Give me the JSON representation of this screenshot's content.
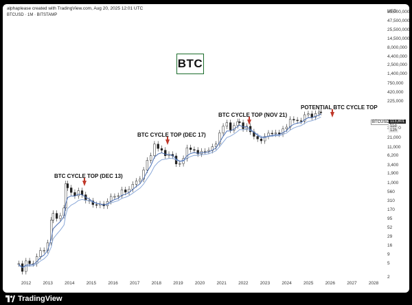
{
  "header": {
    "credit": "alphaplease created with TradingView.com, Aug 20, 2025 12:01 UTC",
    "symbol_line": "BTCUSD · 1M · BITSTAMP"
  },
  "badge": {
    "text": "BTC",
    "border_color": "#1a6b2a"
  },
  "annotations": [
    {
      "id": "dec13",
      "text": "BTC CYCLE TOP (DEC 13)"
    },
    {
      "id": "dec17",
      "text": "BTC CYCLE TOP (DEC 17)"
    },
    {
      "id": "nov21",
      "text": "BTC CYCLE TOP (NOV 21)"
    },
    {
      "id": "potential",
      "text": "POTENTIAL BTC CYCLE TOP"
    }
  ],
  "arrow_color": "#c0392b",
  "price_scale": {
    "currency": "USD",
    "labels": [
      "85,000,000",
      "47,500,000",
      "25,500,000",
      "14,500,000",
      "8,000,000",
      "4,400,000",
      "2,500,000",
      "1,400,000",
      "750,000",
      "420,000",
      "225,000",
      "39,000",
      "21,000",
      "11,000",
      "6,200",
      "3,400",
      "1,900",
      "1,000",
      "560",
      "310",
      "170",
      "95",
      "52",
      "29",
      "16",
      "9",
      "5",
      "2"
    ]
  },
  "last_price": {
    "symbol": "BTCUSD",
    "value": "113,801",
    "sub": "11d 12h"
  },
  "x_axis": {
    "years": [
      "2012",
      "2013",
      "2014",
      "2015",
      "2016",
      "2017",
      "2018",
      "2019",
      "2020",
      "2021",
      "2022",
      "2023",
      "2024",
      "2025",
      "2026",
      "2027",
      "2028"
    ]
  },
  "chart_data": {
    "type": "candlestick",
    "title": "BTCUSD · 1M · BITSTAMP",
    "y_scale": "log",
    "ylim": [
      2,
      85000000
    ],
    "x_range": [
      "2011-07",
      "2028-06"
    ],
    "ema_color": "#4a6fb5",
    "ema2_color": "#8aa8d8",
    "up_color": "#ffffff",
    "down_color": "#222222",
    "monthly": [
      [
        "2011-09",
        5
      ],
      [
        "2011-11",
        3
      ],
      [
        "2012-01",
        6
      ],
      [
        "2012-03",
        5
      ],
      [
        "2012-05",
        5
      ],
      [
        "2012-07",
        8
      ],
      [
        "2012-09",
        12
      ],
      [
        "2012-11",
        12
      ],
      [
        "2013-01",
        20
      ],
      [
        "2013-03",
        90
      ],
      [
        "2013-04",
        140
      ],
      [
        "2013-06",
        100
      ],
      [
        "2013-08",
        120
      ],
      [
        "2013-10",
        200
      ],
      [
        "2013-11",
        1000
      ],
      [
        "2013-12",
        760
      ],
      [
        "2014-02",
        560
      ],
      [
        "2014-04",
        450
      ],
      [
        "2014-06",
        630
      ],
      [
        "2014-08",
        480
      ],
      [
        "2014-10",
        330
      ],
      [
        "2014-12",
        320
      ],
      [
        "2015-02",
        250
      ],
      [
        "2015-04",
        240
      ],
      [
        "2015-06",
        260
      ],
      [
        "2015-08",
        230
      ],
      [
        "2015-10",
        310
      ],
      [
        "2015-12",
        430
      ],
      [
        "2016-02",
        430
      ],
      [
        "2016-04",
        450
      ],
      [
        "2016-06",
        670
      ],
      [
        "2016-08",
        570
      ],
      [
        "2016-10",
        700
      ],
      [
        "2016-12",
        960
      ],
      [
        "2017-02",
        1190
      ],
      [
        "2017-04",
        1350
      ],
      [
        "2017-06",
        2480
      ],
      [
        "2017-08",
        4700
      ],
      [
        "2017-10",
        6400
      ],
      [
        "2017-12",
        13800
      ],
      [
        "2018-02",
        10300
      ],
      [
        "2018-04",
        9200
      ],
      [
        "2018-06",
        6400
      ],
      [
        "2018-08",
        7000
      ],
      [
        "2018-10",
        6300
      ],
      [
        "2018-12",
        3700
      ],
      [
        "2019-02",
        3800
      ],
      [
        "2019-04",
        5300
      ],
      [
        "2019-06",
        10800
      ],
      [
        "2019-08",
        9600
      ],
      [
        "2019-10",
        9200
      ],
      [
        "2019-12",
        7200
      ],
      [
        "2020-02",
        8600
      ],
      [
        "2020-04",
        8600
      ],
      [
        "2020-06",
        9100
      ],
      [
        "2020-08",
        11600
      ],
      [
        "2020-10",
        13800
      ],
      [
        "2020-12",
        29000
      ],
      [
        "2021-02",
        45000
      ],
      [
        "2021-04",
        57000
      ],
      [
        "2021-06",
        35000
      ],
      [
        "2021-08",
        47000
      ],
      [
        "2021-10",
        61000
      ],
      [
        "2021-11",
        57000
      ],
      [
        "2022-01",
        38000
      ],
      [
        "2022-03",
        45000
      ],
      [
        "2022-05",
        31000
      ],
      [
        "2022-07",
        23000
      ],
      [
        "2022-09",
        19400
      ],
      [
        "2022-11",
        17100
      ],
      [
        "2023-01",
        23100
      ],
      [
        "2023-03",
        28400
      ],
      [
        "2023-05",
        27200
      ],
      [
        "2023-07",
        29200
      ],
      [
        "2023-09",
        27000
      ],
      [
        "2023-11",
        37700
      ],
      [
        "2024-01",
        42500
      ],
      [
        "2024-03",
        71300
      ],
      [
        "2024-05",
        67500
      ],
      [
        "2024-07",
        64600
      ],
      [
        "2024-09",
        63300
      ],
      [
        "2024-11",
        96400
      ],
      [
        "2025-01",
        102400
      ],
      [
        "2025-03",
        82500
      ],
      [
        "2025-05",
        104600
      ],
      [
        "2025-07",
        115700
      ],
      [
        "2025-08",
        113801
      ]
    ]
  }
}
